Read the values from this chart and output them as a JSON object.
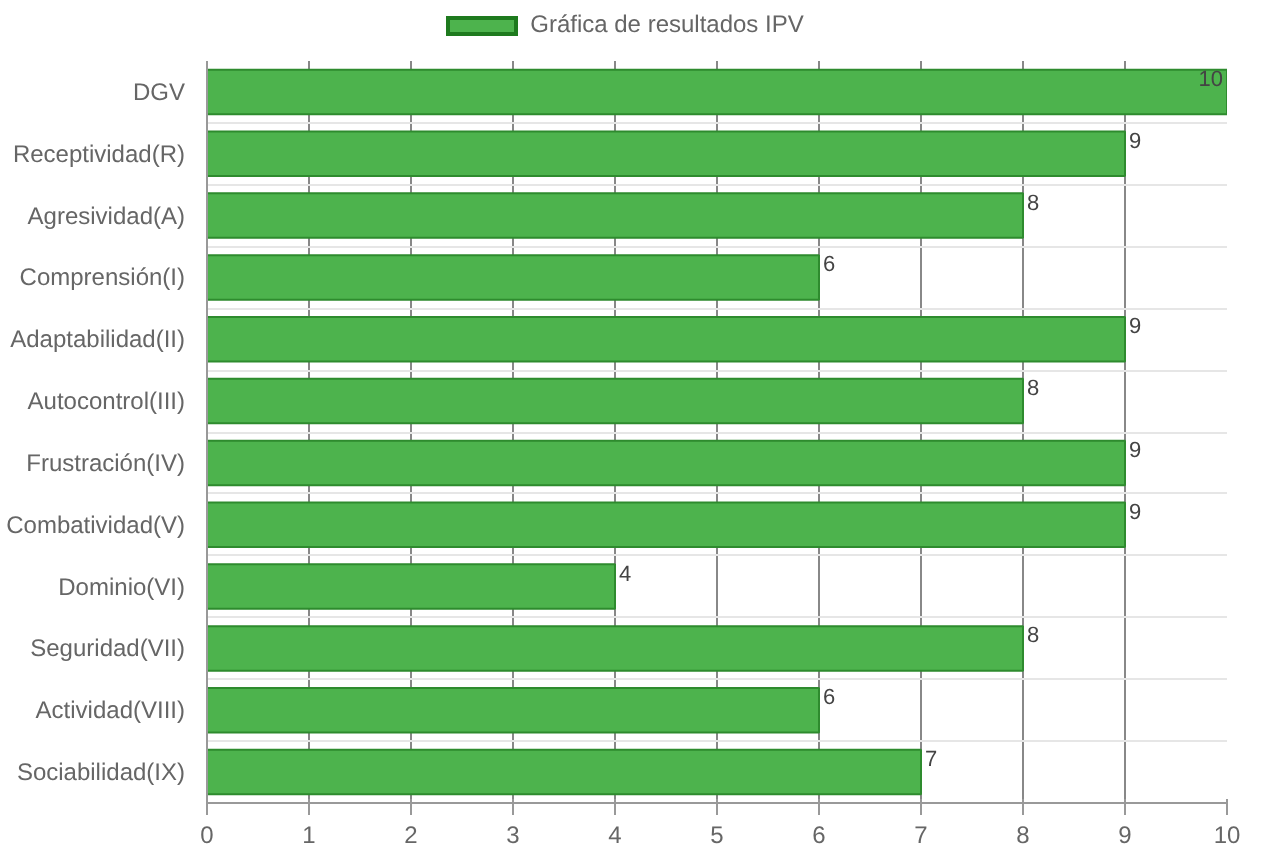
{
  "chart_data": {
    "type": "bar",
    "orientation": "horizontal",
    "categories": [
      "DGV",
      "Receptividad(R)",
      "Agresividad(A)",
      "Comprensión(I)",
      "Adaptabilidad(II)",
      "Autocontrol(III)",
      "Frustración(IV)",
      "Combatividad(V)",
      "Dominio(VI)",
      "Seguridad(VII)",
      "Actividad(VIII)",
      "Sociabilidad(IX)"
    ],
    "series": [
      {
        "name": "Gráfica de resultados IPV",
        "color": "#4db34d",
        "values": [
          10,
          9,
          8,
          6,
          9,
          8,
          9,
          9,
          4,
          8,
          6,
          7
        ]
      }
    ],
    "xlim": [
      0,
      10
    ],
    "xticks": [
      0,
      1,
      2,
      3,
      4,
      5,
      6,
      7,
      8,
      9,
      10
    ],
    "grid": true,
    "legend": "top",
    "data_labels": true
  }
}
